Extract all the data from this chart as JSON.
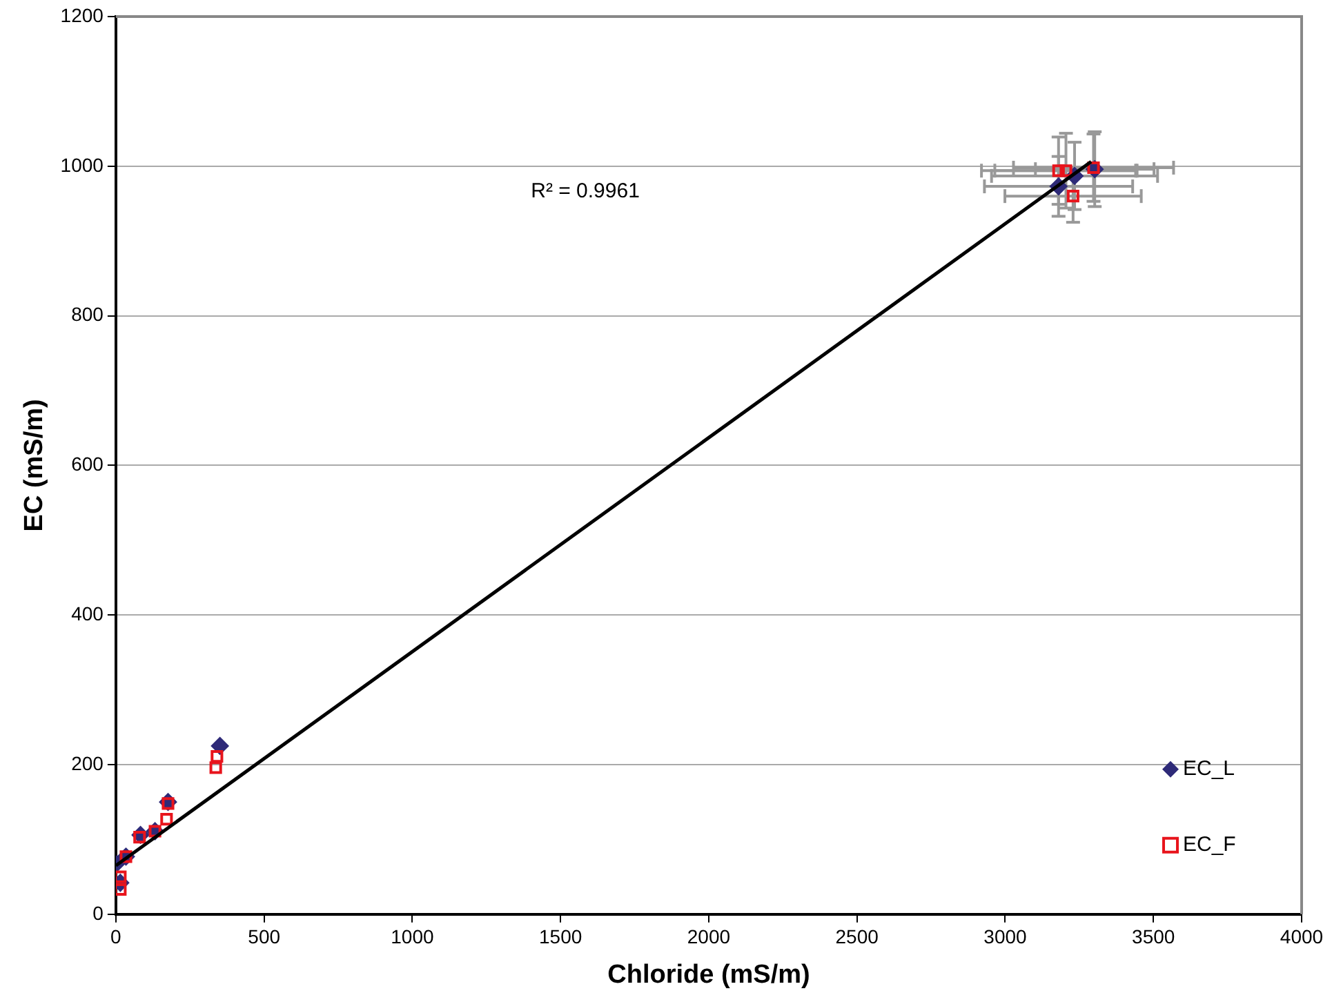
{
  "chart_data": {
    "type": "scatter",
    "xlabel": "Chloride (mS/m)",
    "ylabel": "EC (mS/m)",
    "xlim": [
      0,
      4000
    ],
    "xticks": [
      0,
      500,
      1000,
      1500,
      2000,
      2500,
      3000,
      3500,
      4000
    ],
    "ylim": [
      0,
      1200
    ],
    "yticks": [
      0,
      200,
      400,
      600,
      800,
      1000,
      1200
    ],
    "grid": "y",
    "legend": "bottom right",
    "annotations": [
      "R² = 0.9961"
    ],
    "series": [
      {
        "name": "EC_L",
        "color": "#2e2a78",
        "marker": "diamond",
        "x": [
          0,
          15,
          34,
          83,
          132,
          176,
          351,
          3180,
          3234,
          3302
        ],
        "values": [
          67,
          42,
          77,
          106,
          111,
          150,
          225,
          973,
          987,
          996
        ],
        "xerrors": [
          null,
          null,
          null,
          null,
          null,
          null,
          null,
          250,
          280,
          200
        ],
        "errors": [
          null,
          null,
          null,
          null,
          null,
          null,
          null,
          40,
          45,
          50
        ]
      },
      {
        "name": "EC_F",
        "color": "#e8141c",
        "marker": "square",
        "x": [
          15,
          15,
          34,
          80,
          132,
          171,
          176,
          337,
          341,
          3180,
          3205,
          3229,
          3298
        ],
        "values": [
          50,
          33,
          77,
          103,
          111,
          127,
          148,
          196,
          211,
          994,
          994,
          960,
          998
        ],
        "xerrors": [
          null,
          null,
          null,
          null,
          null,
          null,
          null,
          null,
          null,
          260,
          240,
          230,
          270
        ],
        "errors": [
          null,
          null,
          null,
          null,
          null,
          null,
          null,
          null,
          null,
          45,
          50,
          35,
          45
        ]
      },
      {
        "type": "line",
        "color": "#000000",
        "x": [
          0,
          3290
        ],
        "values": [
          65,
          1006
        ]
      }
    ]
  }
}
